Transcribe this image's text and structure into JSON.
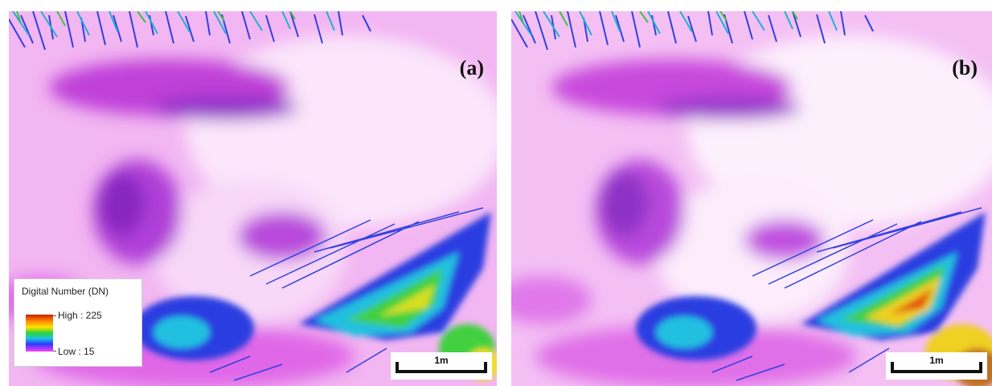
{
  "panels": [
    {
      "id": "a",
      "label": "(a)",
      "scale_label": "1m"
    },
    {
      "id": "b",
      "label": "(b)",
      "scale_label": "1m"
    }
  ],
  "legend": {
    "title": "Digital Number (DN)",
    "high_label": "High : 225",
    "low_label": "Low : 15"
  },
  "colors": {
    "background_pink": "#f4b8f4",
    "light_pink": "#fbe3fb",
    "magenta": "#e060e8",
    "purple": "#a040d8",
    "blue": "#3040e0",
    "cyan": "#20c0e0",
    "green": "#40d040",
    "yellow": "#f0e020",
    "red": "#d02010"
  }
}
